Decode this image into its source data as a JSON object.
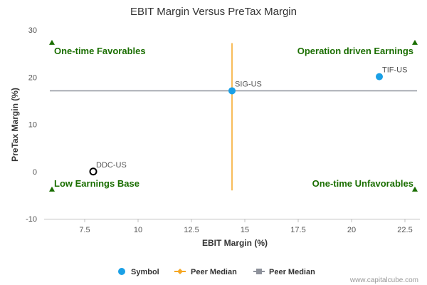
{
  "chart_data": {
    "type": "scatter",
    "title": "EBIT Margin Versus PreTax Margin",
    "xlabel": "EBIT Margin (%)",
    "ylabel": "PreTax Margin (%)",
    "xlim": [
      5.6,
      23.2
    ],
    "ylim": [
      -10,
      30
    ],
    "xticks": [
      "7.5",
      "10",
      "12.5",
      "15",
      "17.5",
      "20",
      "22.5"
    ],
    "xtick_values": [
      7.5,
      10,
      12.5,
      15,
      17.5,
      20,
      22.5
    ],
    "yticks": [
      "-10",
      "0",
      "10",
      "20",
      "30"
    ],
    "ytick_values": [
      -10,
      0,
      10,
      20,
      30
    ],
    "points": [
      {
        "label": "SIG-US",
        "x": 14.4,
        "y": 17.1,
        "style": "filled"
      },
      {
        "label": "TIF-US",
        "x": 21.3,
        "y": 20.1,
        "style": "filled"
      },
      {
        "label": "DDC-US",
        "x": 7.9,
        "y": 0.0,
        "style": "hollow"
      }
    ],
    "peer_median_x": 14.4,
    "peer_median_y": 17.1,
    "vline_y_range": [
      -4,
      27.2
    ],
    "hline_x_range": [
      5.6,
      23.2
    ],
    "quadrant_labels": {
      "top_left": "One-time Favorables",
      "top_right": "Operation driven Earnings",
      "bottom_left": "Low Earnings Base",
      "bottom_right": "One-time Unfavorables"
    },
    "marker_triangles_y": [
      27.3,
      -3.8
    ],
    "legend": [
      {
        "label": "Symbol",
        "marker": "circle",
        "color": "#1aa0e6"
      },
      {
        "label": "Peer Median",
        "marker": "line-diamond",
        "color": "#f5a623"
      },
      {
        "label": "Peer Median",
        "marker": "line-square",
        "color": "#8e929b"
      }
    ],
    "legend_position": "bottom",
    "grid": false
  },
  "colors": {
    "point_fill": "#1aa0e6",
    "vline": "#f5a623",
    "hline": "#8e929b",
    "quad_text": "#1a6e00",
    "triangle": "#1a6e00"
  },
  "credit": "www.capitalcube.com"
}
